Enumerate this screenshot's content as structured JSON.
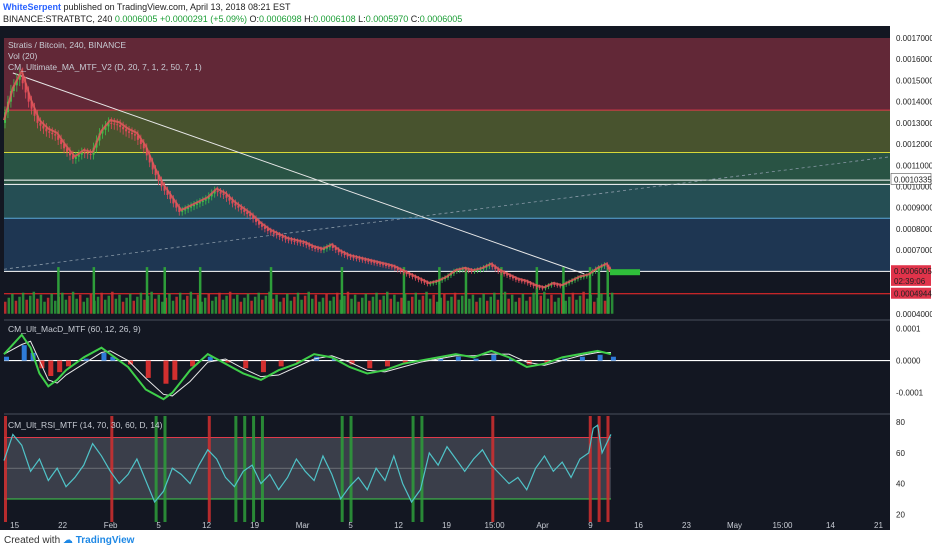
{
  "header": {
    "author": "WhiteSerpent",
    "published": "published on TradingView.com, April 13, 2018 08:21 EST",
    "symbol_exchange": "BINANCE:STRATBTC, 240",
    "last": "0.0006005",
    "change": "+0.0000291 (+5.09%)",
    "o_label": "O:",
    "o": "0.0006098",
    "h_label": "H:",
    "h": "0.0006108",
    "l_label": "L:",
    "l": "0.0005970",
    "c_label": "C:",
    "c": "0.0006005"
  },
  "footer": {
    "created_with": "Created with",
    "brand": "TradingView"
  },
  "chart_data": [
    {
      "type": "candlestick",
      "title": "Stratis / Bitcoin, 240, BINANCE",
      "indicators": [
        "Vol (20)",
        "CM_Ultimate_MA_MTF_V2 (D, 20, 7, 1, 2, 50, 7, 1)"
      ],
      "y_ticks": [
        "0.0017000",
        "0.0016000",
        "0.0015000",
        "0.0014000",
        "0.0013000",
        "0.0012000",
        "0.0011000",
        "0.0010000",
        "0.0009000",
        "0.0008000",
        "0.0007000",
        "0.0004000"
      ],
      "ylim": [
        0.00038,
        0.0017
      ],
      "x_ticks": [
        "15",
        "22",
        "Feb",
        "5",
        "12",
        "19",
        "Mar",
        "5",
        "12",
        "19",
        "15:00",
        "Apr",
        "9",
        "16",
        "23",
        "May",
        "15:00",
        "14",
        "21"
      ],
      "price_labels": [
        {
          "value": "0.0010335",
          "y": 0.0010335,
          "color": "#ffffff"
        },
        {
          "value": "0.0006005",
          "y": 0.0006005,
          "color": "#e0334a"
        },
        {
          "value": "02:39:06",
          "y": 0.000555,
          "color": "#e0334a"
        },
        {
          "value": "0.0004944",
          "y": 0.0004944,
          "color": "#e0334a"
        }
      ],
      "zones": [
        {
          "from": 0.00136,
          "to": 0.0017,
          "color": "#6b2a3a"
        },
        {
          "from": 0.00116,
          "to": 0.00136,
          "color": "#4f5a30"
        },
        {
          "from": 0.00101,
          "to": 0.00116,
          "color": "#2c5a48"
        },
        {
          "from": 0.00085,
          "to": 0.00101,
          "color": "#28545a"
        },
        {
          "from": 0.0006,
          "to": 0.00085,
          "color": "#203a58"
        }
      ],
      "levels": [
        0.00136,
        0.00116,
        0.00103,
        0.00101,
        0.00085,
        0.0006,
        0.0004944
      ],
      "level_colors": [
        "#e03a4a",
        "#d8d838",
        "#ffffff",
        "#ffffff",
        "#5aa8d8",
        "#ffffff",
        "#ff2a2a"
      ],
      "downtrend": {
        "from": [
          0.01,
          0.001535
        ],
        "to": [
          0.655,
          0.000588
        ]
      },
      "uptrend": {
        "from": [
          0.0,
          0.00061
        ],
        "to": [
          1.0,
          0.00114
        ]
      },
      "close_path": [
        [
          0.0,
          0.0013
        ],
        [
          0.01,
          0.00145
        ],
        [
          0.02,
          0.00153
        ],
        [
          0.03,
          0.0014
        ],
        [
          0.04,
          0.0013
        ],
        [
          0.05,
          0.00126
        ],
        [
          0.06,
          0.00124
        ],
        [
          0.07,
          0.00118
        ],
        [
          0.08,
          0.00113
        ],
        [
          0.09,
          0.00116
        ],
        [
          0.1,
          0.00115
        ],
        [
          0.11,
          0.00125
        ],
        [
          0.12,
          0.0013
        ],
        [
          0.13,
          0.00129
        ],
        [
          0.14,
          0.00126
        ],
        [
          0.15,
          0.00124
        ],
        [
          0.16,
          0.00118
        ],
        [
          0.17,
          0.00108
        ],
        [
          0.18,
          0.001
        ],
        [
          0.19,
          0.00094
        ],
        [
          0.2,
          0.00088
        ],
        [
          0.21,
          0.0009
        ],
        [
          0.22,
          0.00092
        ],
        [
          0.23,
          0.00094
        ],
        [
          0.24,
          0.00098
        ],
        [
          0.25,
          0.00096
        ],
        [
          0.26,
          0.00092
        ],
        [
          0.27,
          0.00089
        ],
        [
          0.28,
          0.00086
        ],
        [
          0.29,
          0.00082
        ],
        [
          0.3,
          0.00079
        ],
        [
          0.31,
          0.00077
        ],
        [
          0.32,
          0.00075
        ],
        [
          0.33,
          0.00074
        ],
        [
          0.34,
          0.00073
        ],
        [
          0.35,
          0.00071
        ],
        [
          0.36,
          0.0007
        ],
        [
          0.37,
          0.00072
        ],
        [
          0.38,
          0.00069
        ],
        [
          0.39,
          0.00067
        ],
        [
          0.4,
          0.00066
        ],
        [
          0.41,
          0.00065
        ],
        [
          0.42,
          0.00064
        ],
        [
          0.43,
          0.00063
        ],
        [
          0.44,
          0.00062
        ],
        [
          0.45,
          0.0006
        ],
        [
          0.46,
          0.00058
        ],
        [
          0.47,
          0.00056
        ],
        [
          0.48,
          0.00054
        ],
        [
          0.49,
          0.00055
        ],
        [
          0.5,
          0.00057
        ],
        [
          0.51,
          0.0006
        ],
        [
          0.52,
          0.00061
        ],
        [
          0.53,
          0.0006
        ],
        [
          0.54,
          0.00061
        ],
        [
          0.55,
          0.00063
        ],
        [
          0.56,
          0.0006
        ],
        [
          0.57,
          0.00058
        ],
        [
          0.58,
          0.00056
        ],
        [
          0.59,
          0.00055
        ],
        [
          0.6,
          0.00053
        ],
        [
          0.61,
          0.00052
        ],
        [
          0.62,
          0.00054
        ],
        [
          0.63,
          0.00053
        ],
        [
          0.64,
          0.00055
        ],
        [
          0.65,
          0.00057
        ],
        [
          0.66,
          0.00058
        ],
        [
          0.67,
          0.00061
        ],
        [
          0.68,
          0.00063
        ],
        [
          0.685,
          0.0006
        ]
      ],
      "volume_pane_spikes": [
        0.06,
        0.1,
        0.16,
        0.18,
        0.22,
        0.3,
        0.38,
        0.45,
        0.49,
        0.52,
        0.56,
        0.6,
        0.63,
        0.66,
        0.67,
        0.68
      ]
    },
    {
      "type": "line",
      "title": "CM_Ult_MacD_MTF (60, 12, 26, 9)",
      "y_ticks": [
        "0.0001",
        "0.0000",
        "-0.0001"
      ],
      "ylim": [
        -0.00016,
        0.00012
      ],
      "macd": [
        [
          0.0,
          2e-05
        ],
        [
          0.02,
          8e-05
        ],
        [
          0.03,
          4e-05
        ],
        [
          0.04,
          -4e-05
        ],
        [
          0.05,
          -8e-05
        ],
        [
          0.06,
          -6e-05
        ],
        [
          0.07,
          -3e-05
        ],
        [
          0.09,
          1e-05
        ],
        [
          0.11,
          4e-05
        ],
        [
          0.12,
          2e-05
        ],
        [
          0.14,
          -2e-05
        ],
        [
          0.16,
          -9e-05
        ],
        [
          0.18,
          -0.00012
        ],
        [
          0.19,
          -0.0001
        ],
        [
          0.21,
          -3e-05
        ],
        [
          0.23,
          2e-05
        ],
        [
          0.25,
          -1e-05
        ],
        [
          0.27,
          -4e-05
        ],
        [
          0.29,
          -6e-05
        ],
        [
          0.31,
          -3e-05
        ],
        [
          0.33,
          -1e-05
        ],
        [
          0.35,
          2e-05
        ],
        [
          0.37,
          1e-05
        ],
        [
          0.39,
          -2e-05
        ],
        [
          0.41,
          -4e-05
        ],
        [
          0.43,
          -3e-05
        ],
        [
          0.45,
          -1e-05
        ],
        [
          0.47,
          0.0
        ],
        [
          0.49,
          1e-05
        ],
        [
          0.51,
          2e-05
        ],
        [
          0.53,
          1e-05
        ],
        [
          0.55,
          3e-05
        ],
        [
          0.57,
          1e-05
        ],
        [
          0.59,
          -2e-05
        ],
        [
          0.61,
          -1e-05
        ],
        [
          0.63,
          1e-05
        ],
        [
          0.65,
          2e-05
        ],
        [
          0.67,
          3e-05
        ],
        [
          0.685,
          2e-05
        ]
      ]
    },
    {
      "type": "line",
      "title": "CM_Ult_RSI_MTF (14, 70, 30, 60, D, 14)",
      "y_ticks": [
        "80",
        "60",
        "40",
        "20"
      ],
      "ylim": [
        15,
        84
      ],
      "upper": 70,
      "lower": 30,
      "mid": 50,
      "rsi": [
        [
          0.0,
          55
        ],
        [
          0.01,
          72
        ],
        [
          0.02,
          65
        ],
        [
          0.03,
          48
        ],
        [
          0.04,
          56
        ],
        [
          0.05,
          42
        ],
        [
          0.06,
          50
        ],
        [
          0.07,
          38
        ],
        [
          0.08,
          44
        ],
        [
          0.09,
          52
        ],
        [
          0.1,
          66
        ],
        [
          0.11,
          58
        ],
        [
          0.12,
          48
        ],
        [
          0.13,
          40
        ],
        [
          0.14,
          46
        ],
        [
          0.15,
          56
        ],
        [
          0.16,
          42
        ],
        [
          0.17,
          28
        ],
        [
          0.18,
          35
        ],
        [
          0.19,
          50
        ],
        [
          0.2,
          46
        ],
        [
          0.21,
          40
        ],
        [
          0.22,
          52
        ],
        [
          0.23,
          62
        ],
        [
          0.24,
          56
        ],
        [
          0.25,
          44
        ],
        [
          0.26,
          38
        ],
        [
          0.27,
          48
        ],
        [
          0.28,
          52
        ],
        [
          0.29,
          40
        ],
        [
          0.3,
          46
        ],
        [
          0.31,
          36
        ],
        [
          0.32,
          44
        ],
        [
          0.33,
          56
        ],
        [
          0.34,
          48
        ],
        [
          0.35,
          42
        ],
        [
          0.36,
          58
        ],
        [
          0.37,
          46
        ],
        [
          0.38,
          30
        ],
        [
          0.39,
          38
        ],
        [
          0.4,
          44
        ],
        [
          0.41,
          36
        ],
        [
          0.42,
          50
        ],
        [
          0.43,
          42
        ],
        [
          0.44,
          58
        ],
        [
          0.45,
          40
        ],
        [
          0.46,
          28
        ],
        [
          0.47,
          36
        ],
        [
          0.48,
          60
        ],
        [
          0.49,
          52
        ],
        [
          0.5,
          64
        ],
        [
          0.51,
          56
        ],
        [
          0.52,
          48
        ],
        [
          0.53,
          56
        ],
        [
          0.54,
          62
        ],
        [
          0.55,
          52
        ],
        [
          0.56,
          46
        ],
        [
          0.57,
          40
        ],
        [
          0.58,
          44
        ],
        [
          0.59,
          36
        ],
        [
          0.6,
          50
        ],
        [
          0.61,
          58
        ],
        [
          0.62,
          48
        ],
        [
          0.63,
          54
        ],
        [
          0.64,
          44
        ],
        [
          0.65,
          56
        ],
        [
          0.66,
          60
        ],
        [
          0.665,
          76
        ],
        [
          0.67,
          78
        ],
        [
          0.675,
          60
        ],
        [
          0.68,
          66
        ],
        [
          0.685,
          72
        ]
      ],
      "overbought_marks": [
        0.0,
        0.12,
        0.23,
        0.55,
        0.66,
        0.67,
        0.68
      ],
      "oversold_marks": [
        0.17,
        0.18,
        0.26,
        0.27,
        0.28,
        0.29,
        0.38,
        0.39,
        0.46,
        0.47
      ]
    }
  ]
}
